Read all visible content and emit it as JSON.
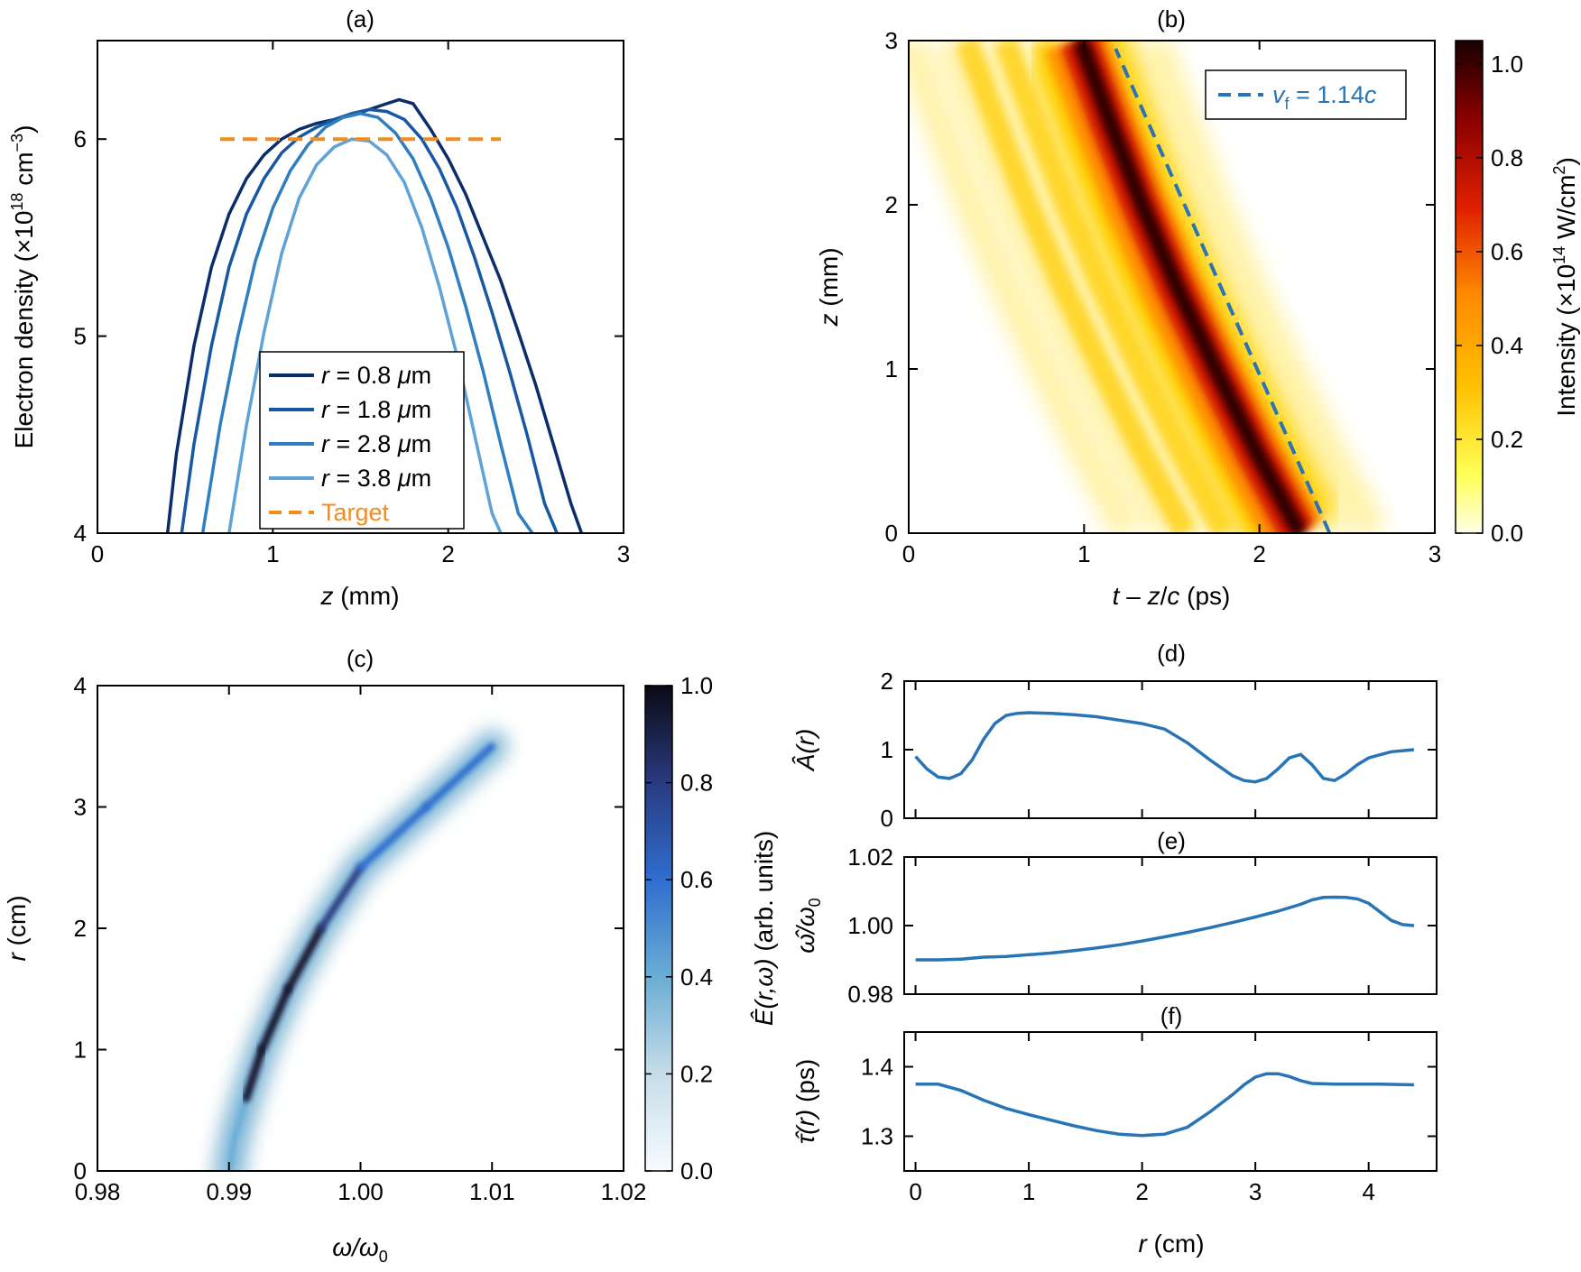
{
  "chart_data": [
    {
      "panel": "(a)",
      "type": "line",
      "xlabel_var": "z",
      "xlabel_unit": " (mm)",
      "ylabel_pre": "Electron density (×10",
      "ylabel_exp": "18",
      "ylabel_unit": " cm",
      "ylabel_exp2": "−3",
      "ylabel_post": ")",
      "xlim": [
        0,
        3
      ],
      "ylim": [
        4,
        6.5
      ],
      "xticks": [
        0,
        1,
        2,
        3
      ],
      "yticks": [
        4,
        5,
        6
      ],
      "legend": {
        "placement": "bottom-center"
      },
      "series": [
        {
          "name": "r = 0.8 μm",
          "var": "r",
          "text": " = 0.8 ",
          "unit_italic": "μ",
          "unit": "m",
          "color": "#0b2d6b",
          "x": [
            0.4,
            0.45,
            0.55,
            0.65,
            0.75,
            0.85,
            0.95,
            1.05,
            1.15,
            1.25,
            1.35,
            1.45,
            1.55,
            1.65,
            1.72,
            1.8,
            1.9,
            2.0,
            2.1,
            2.2,
            2.3,
            2.4,
            2.5,
            2.6,
            2.7,
            2.76
          ],
          "y": [
            4.0,
            4.4,
            4.95,
            5.35,
            5.62,
            5.8,
            5.92,
            6.0,
            6.05,
            6.08,
            6.1,
            6.12,
            6.15,
            6.18,
            6.2,
            6.18,
            6.05,
            5.9,
            5.72,
            5.5,
            5.28,
            5.02,
            4.75,
            4.45,
            4.15,
            4.0
          ]
        },
        {
          "name": "r = 1.8 μm",
          "var": "r",
          "text": " = 1.8 ",
          "unit_italic": "μ",
          "unit": "m",
          "color": "#1757a3",
          "x": [
            0.48,
            0.55,
            0.65,
            0.75,
            0.85,
            0.95,
            1.05,
            1.15,
            1.25,
            1.35,
            1.45,
            1.55,
            1.65,
            1.75,
            1.85,
            1.95,
            2.05,
            2.15,
            2.25,
            2.35,
            2.45,
            2.55,
            2.62
          ],
          "y": [
            4.0,
            4.45,
            4.95,
            5.35,
            5.62,
            5.8,
            5.93,
            6.01,
            6.06,
            6.1,
            6.13,
            6.15,
            6.14,
            6.1,
            6.0,
            5.85,
            5.65,
            5.4,
            5.12,
            4.82,
            4.5,
            4.15,
            4.0
          ]
        },
        {
          "name": "r = 2.8 μm",
          "var": "r",
          "text": " = 2.8 ",
          "unit_italic": "μ",
          "unit": "m",
          "color": "#2e7ec1",
          "x": [
            0.6,
            0.7,
            0.8,
            0.9,
            1.0,
            1.1,
            1.2,
            1.3,
            1.4,
            1.5,
            1.6,
            1.7,
            1.8,
            1.9,
            2.0,
            2.1,
            2.2,
            2.3,
            2.4,
            2.48
          ],
          "y": [
            4.0,
            4.55,
            5.0,
            5.38,
            5.65,
            5.84,
            5.97,
            6.06,
            6.11,
            6.13,
            6.11,
            6.03,
            5.9,
            5.7,
            5.45,
            5.15,
            4.82,
            4.45,
            4.1,
            4.0
          ]
        },
        {
          "name": "r = 3.8 μm",
          "var": "r",
          "text": " = 3.8 ",
          "unit_italic": "μ",
          "unit": "m",
          "color": "#5fa2d6",
          "x": [
            0.75,
            0.85,
            0.95,
            1.05,
            1.15,
            1.25,
            1.35,
            1.45,
            1.55,
            1.65,
            1.75,
            1.85,
            1.95,
            2.05,
            2.15,
            2.25,
            2.3
          ],
          "y": [
            4.0,
            4.55,
            5.02,
            5.42,
            5.7,
            5.87,
            5.96,
            6.0,
            5.99,
            5.92,
            5.78,
            5.55,
            5.25,
            4.9,
            4.5,
            4.1,
            4.0
          ]
        },
        {
          "name": "Target",
          "var": "",
          "text": "Target",
          "unit_italic": "",
          "unit": "",
          "color": "#f28c1e",
          "dashed": true,
          "x": [
            0.7,
            2.3
          ],
          "y": [
            6.0,
            6.0
          ]
        }
      ]
    },
    {
      "panel": "(b)",
      "type": "heatmap",
      "xlabel_var1": "t",
      "xlabel_mid": " – ",
      "xlabel_var2": "z",
      "xlabel_slash": "/",
      "xlabel_var3": "c",
      "xlabel_unit": " (ps)",
      "ylabel_var": "z",
      "ylabel_unit": " (mm)",
      "xlim": [
        0,
        3
      ],
      "ylim": [
        0,
        3
      ],
      "xticks": [
        0,
        1,
        2,
        3
      ],
      "yticks": [
        0,
        1,
        2,
        3
      ],
      "peak_center_t_at_z": {
        "z": [
          0,
          0.5,
          1,
          1.5,
          2,
          2.5,
          3
        ],
        "t": [
          2.2,
          1.95,
          1.72,
          1.5,
          1.3,
          1.12,
          0.95
        ]
      },
      "dashed_line": {
        "label_var": "v",
        "label_sub": "f",
        "label_text": " = 1.14",
        "label_var2": "c",
        "z": [
          0,
          2.95
        ],
        "t": [
          2.4,
          1.18
        ],
        "color": "#2874b5"
      },
      "colorbar": {
        "label_pre": "Intensity (×10",
        "label_exp": "14",
        "label_mid": " W/cm",
        "label_exp2": "2",
        "label_post": ")",
        "range": [
          0.0,
          1.05
        ],
        "ticks": [
          0.0,
          0.2,
          0.4,
          0.6,
          0.8,
          1.0
        ],
        "tick_labels": [
          "0.0",
          "0.2",
          "0.4",
          "0.6",
          "0.8",
          "1.0"
        ]
      }
    },
    {
      "panel": "(c)",
      "type": "heatmap",
      "xlabel_var": "ω/ω",
      "xlabel_sub": "0",
      "ylabel_var": "r",
      "ylabel_unit": " (cm)",
      "xlim": [
        0.98,
        1.02
      ],
      "ylim": [
        0,
        4
      ],
      "xticks": [
        0.98,
        0.99,
        1.0,
        1.01,
        1.02
      ],
      "xtick_labels": [
        "0.98",
        "0.99",
        "1.00",
        "1.01",
        "1.02"
      ],
      "yticks": [
        0,
        1,
        2,
        3,
        4
      ],
      "ridge": {
        "r": [
          0.0,
          0.3,
          0.6,
          1.0,
          1.5,
          2.0,
          2.5,
          3.0,
          3.5
        ],
        "w": [
          0.99,
          0.9905,
          0.9913,
          0.9925,
          0.9945,
          0.997,
          1.0,
          1.005,
          1.01
        ]
      },
      "colorbar": {
        "label_var": "Ê(r,ω)",
        "label_unit": " (arb. units)",
        "range": [
          0.0,
          1.0
        ],
        "ticks": [
          0.0,
          0.2,
          0.4,
          0.6,
          0.8,
          1.0
        ],
        "tick_labels": [
          "0.0",
          "0.2",
          "0.4",
          "0.6",
          "0.8",
          "1.0"
        ]
      }
    },
    {
      "panel": "(d)",
      "type": "line",
      "ylabel_var": "Â(r)",
      "ylabel_unit": "",
      "xlim": [
        -0.1,
        4.6
      ],
      "ylim": [
        0,
        2
      ],
      "yticks": [
        0,
        1,
        2
      ],
      "color": "#2874b5",
      "x": [
        0,
        0.1,
        0.2,
        0.3,
        0.4,
        0.5,
        0.6,
        0.7,
        0.8,
        0.9,
        1.0,
        1.2,
        1.4,
        1.6,
        1.8,
        2.0,
        2.2,
        2.4,
        2.6,
        2.8,
        2.9,
        3.0,
        3.1,
        3.2,
        3.3,
        3.4,
        3.5,
        3.6,
        3.7,
        3.8,
        3.9,
        4.0,
        4.2,
        4.4
      ],
      "y": [
        0.9,
        0.72,
        0.6,
        0.58,
        0.65,
        0.85,
        1.15,
        1.38,
        1.5,
        1.53,
        1.54,
        1.53,
        1.51,
        1.48,
        1.43,
        1.38,
        1.3,
        1.1,
        0.85,
        0.62,
        0.55,
        0.53,
        0.58,
        0.72,
        0.88,
        0.93,
        0.78,
        0.58,
        0.55,
        0.65,
        0.78,
        0.88,
        0.97,
        1.0
      ]
    },
    {
      "panel": "(e)",
      "type": "line",
      "ylabel_var": "ω̂/ω",
      "ylabel_sub": "0",
      "xlim": [
        -0.1,
        4.6
      ],
      "ylim": [
        0.98,
        1.02
      ],
      "yticks": [
        0.98,
        1.0,
        1.02
      ],
      "ytick_labels": [
        "0.98",
        "1.00",
        "1.02"
      ],
      "color": "#2874b5",
      "x": [
        0,
        0.2,
        0.4,
        0.6,
        0.8,
        1.0,
        1.2,
        1.4,
        1.6,
        1.8,
        2.0,
        2.2,
        2.4,
        2.6,
        2.8,
        3.0,
        3.2,
        3.4,
        3.5,
        3.6,
        3.7,
        3.8,
        3.9,
        4.0,
        4.1,
        4.2,
        4.3,
        4.4
      ],
      "y": [
        0.99,
        0.99,
        0.9902,
        0.9908,
        0.991,
        0.9915,
        0.992,
        0.9927,
        0.9935,
        0.9944,
        0.9955,
        0.9967,
        0.998,
        0.9994,
        1.0009,
        1.0025,
        1.0042,
        1.0062,
        1.0075,
        1.0082,
        1.0083,
        1.0082,
        1.0078,
        1.0065,
        1.004,
        1.0015,
        1.0003,
        1.0
      ]
    },
    {
      "panel": "(f)",
      "type": "line",
      "ylabel_var": "τ̂(r)",
      "ylabel_unit": " (ps)",
      "xlabel_var": "r",
      "xlabel_unit": " (cm)",
      "xlim": [
        -0.1,
        4.6
      ],
      "ylim": [
        1.25,
        1.45
      ],
      "xticks": [
        0,
        1,
        2,
        3,
        4
      ],
      "yticks": [
        1.3,
        1.4
      ],
      "ytick_labels": [
        "1.3",
        "1.4"
      ],
      "color": "#2874b5",
      "x": [
        0,
        0.2,
        0.4,
        0.6,
        0.8,
        1.0,
        1.2,
        1.4,
        1.6,
        1.8,
        2.0,
        2.2,
        2.4,
        2.6,
        2.8,
        2.9,
        3.0,
        3.1,
        3.2,
        3.3,
        3.4,
        3.5,
        3.7,
        3.9,
        4.1,
        4.4
      ],
      "y": [
        1.375,
        1.375,
        1.366,
        1.352,
        1.34,
        1.331,
        1.323,
        1.315,
        1.308,
        1.303,
        1.301,
        1.303,
        1.313,
        1.335,
        1.36,
        1.374,
        1.385,
        1.39,
        1.39,
        1.386,
        1.38,
        1.376,
        1.375,
        1.375,
        1.375,
        1.374
      ]
    }
  ]
}
